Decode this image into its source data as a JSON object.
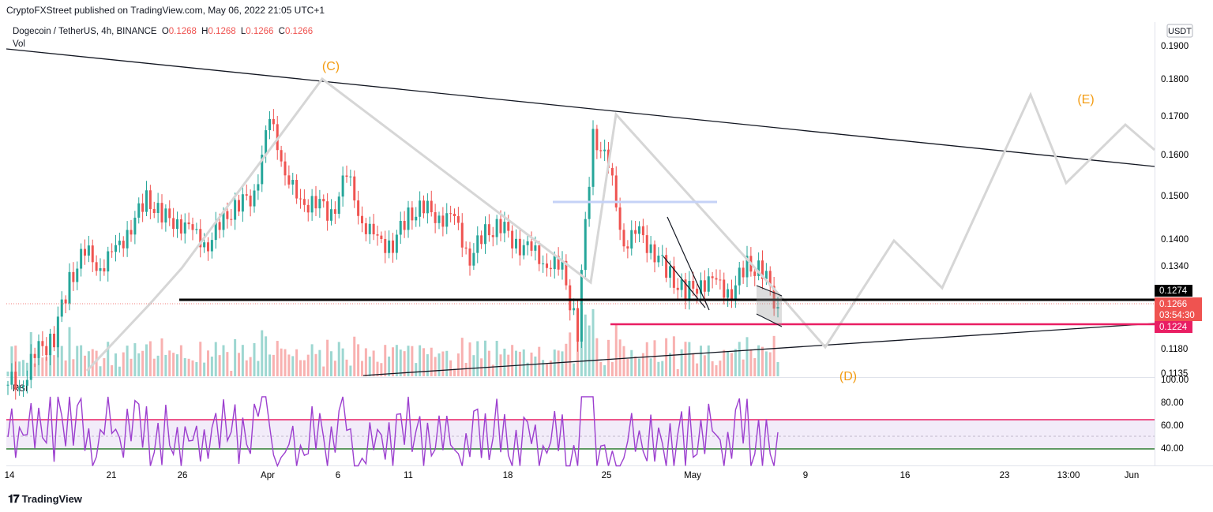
{
  "header": {
    "published": "CryptoFXStreet published on TradingView.com, May 06, 2022 21:05 UTC+1"
  },
  "symbol": {
    "name": "Dogecoin / TetherUS, 4h, BINANCE",
    "ohlc": [
      {
        "key": "O",
        "value": "0.1268"
      },
      {
        "key": "H",
        "value": "0.1268"
      },
      {
        "key": "L",
        "value": "0.1266"
      },
      {
        "key": "C",
        "value": "0.1266"
      }
    ],
    "vol_label": "Vol"
  },
  "rsi_label": "RSI",
  "footer": {
    "brand": "TradingView"
  },
  "colors": {
    "up": "#26a69a",
    "down": "#ef5350",
    "rsi": "#9c3fcf",
    "wave_label": "#f39c12",
    "projection": "#d9d9d9",
    "support_black": "#000000",
    "support_pink": "#e91e63",
    "resistance_blue": "#c5d2f7"
  },
  "chart_data": {
    "type": "candlestick",
    "symbol": "Dogecoin / TetherUS",
    "timeframe": "4h",
    "exchange": "BINANCE",
    "currency": "USDT",
    "price_axis": [
      "0.1900",
      "0.1800",
      "0.1700",
      "0.1600",
      "0.1500",
      "0.1400",
      "0.1340",
      "0.1180",
      "0.1135"
    ],
    "price_scale": "log",
    "time_axis": [
      "14",
      "21",
      "26",
      "Apr",
      "6",
      "11",
      "18",
      "25",
      "May",
      "9",
      "16",
      "23",
      "13:00",
      "Jun"
    ],
    "last_price": "0.1266",
    "countdown": "03:54:30",
    "level_labels": [
      "0.1274",
      "0.1224"
    ],
    "support_levels": [
      0.1274,
      0.1224
    ],
    "resistance_zone": 0.1488,
    "wave_labels": [
      "(C)",
      "(D)",
      "(E)"
    ],
    "rsi": {
      "axis": [
        "100.00",
        "80.00",
        "60.00",
        "40.00"
      ],
      "upper_band": 65,
      "lower_band": 40
    },
    "price_path": [
      [
        "Mar 14",
        0.112
      ],
      [
        "Mar 17",
        0.113
      ],
      [
        "Mar 19",
        0.118
      ],
      [
        "Mar 21",
        0.121
      ],
      [
        "Mar 23",
        0.132
      ],
      [
        "Mar 24",
        0.138
      ],
      [
        "Mar 25",
        0.135
      ],
      [
        "Mar 26",
        0.138
      ],
      [
        "Mar 27",
        0.144
      ],
      [
        "Mar 28",
        0.15
      ],
      [
        "Mar 29",
        0.146
      ],
      [
        "Mar 30",
        0.145
      ],
      [
        "Mar 31",
        0.142
      ],
      [
        "Apr 1",
        0.14
      ],
      [
        "Apr 2",
        0.145
      ],
      [
        "Apr 3",
        0.149
      ],
      [
        "Apr 4",
        0.151
      ],
      [
        "Apr 5",
        0.17
      ],
      [
        "Apr 6",
        0.157
      ],
      [
        "Apr 7",
        0.148
      ],
      [
        "Apr 8",
        0.15
      ],
      [
        "Apr 9",
        0.146
      ],
      [
        "Apr 10",
        0.156
      ],
      [
        "Apr 11",
        0.145
      ],
      [
        "Apr 12",
        0.14
      ],
      [
        "Apr 13",
        0.14
      ],
      [
        "Apr 14",
        0.146
      ],
      [
        "Apr 15",
        0.148
      ],
      [
        "Apr 16",
        0.146
      ],
      [
        "Apr 17",
        0.145
      ],
      [
        "Apr 18",
        0.137
      ],
      [
        "Apr 19",
        0.142
      ],
      [
        "Apr 20",
        0.144
      ],
      [
        "Apr 21",
        0.14
      ],
      [
        "Apr 22",
        0.138
      ],
      [
        "Apr 23",
        0.136
      ],
      [
        "Apr 24",
        0.134
      ],
      [
        "Apr 25",
        0.122
      ],
      [
        "Apr 25 12h",
        0.166
      ],
      [
        "Apr 26",
        0.158
      ],
      [
        "Apr 27",
        0.14
      ],
      [
        "Apr 28",
        0.142
      ],
      [
        "Apr 29",
        0.138
      ],
      [
        "Apr 30",
        0.133
      ],
      [
        "May 1",
        0.129
      ],
      [
        "May 2",
        0.132
      ],
      [
        "May 3",
        0.131
      ],
      [
        "May 4",
        0.13
      ],
      [
        "May 5",
        0.135
      ],
      [
        "May 5 12h",
        0.134
      ],
      [
        "May 6",
        0.1266
      ]
    ]
  }
}
